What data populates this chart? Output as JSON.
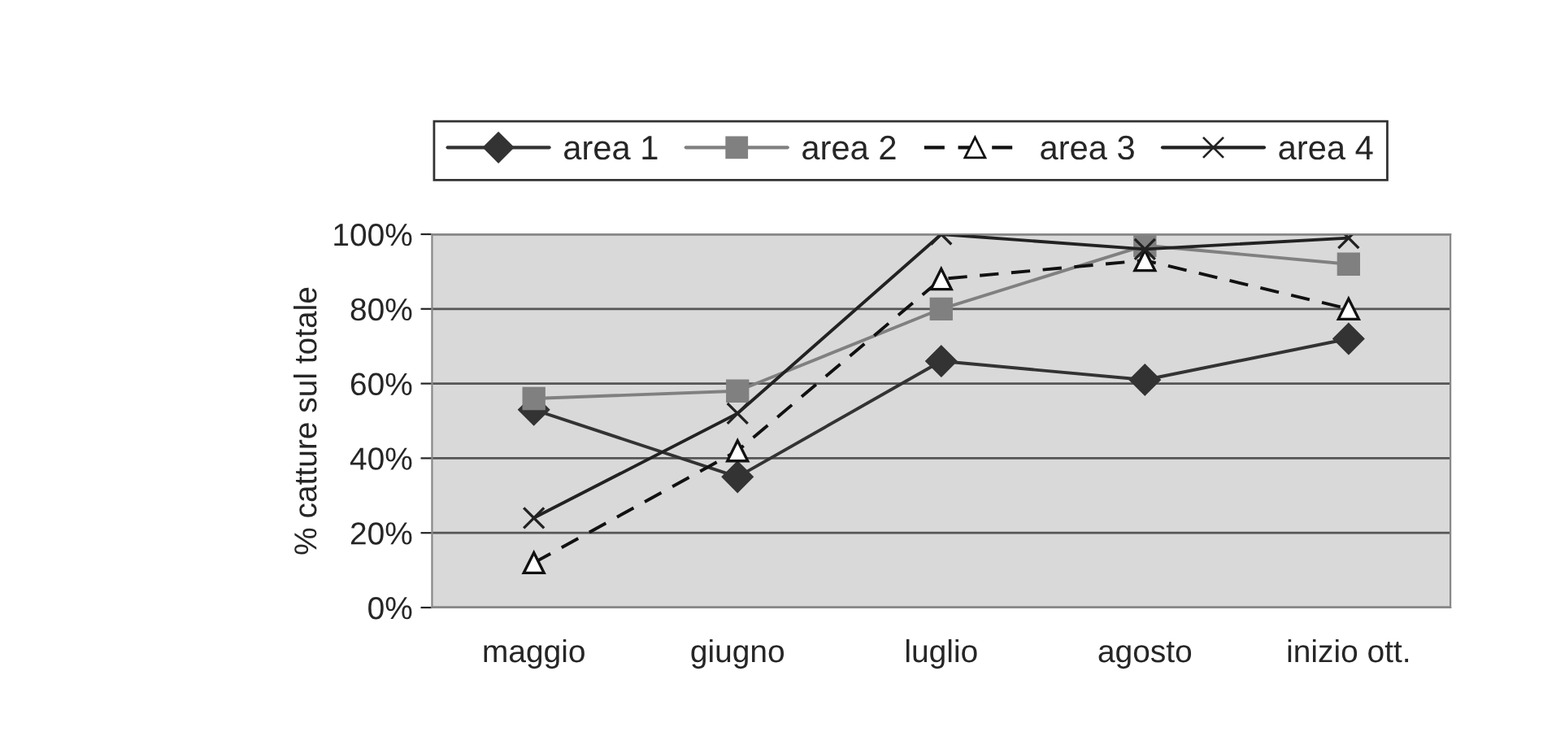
{
  "chart_data": {
    "type": "line",
    "ylabel": "% catture sul totale",
    "categories": [
      "maggio",
      "giugno",
      "luglio",
      "agosto",
      "inizio ott."
    ],
    "series": [
      {
        "name": "area 1",
        "color": "#333333",
        "marker": "diamond",
        "line_style": "solid",
        "values": [
          53,
          35,
          66,
          61,
          72
        ]
      },
      {
        "name": "area 2",
        "color": "#808080",
        "marker": "square",
        "line_style": "solid",
        "values": [
          56,
          58,
          80,
          97,
          92
        ]
      },
      {
        "name": "area 3",
        "color": "#111111",
        "marker": "triangle",
        "line_style": "dashed",
        "values": [
          12,
          42,
          88,
          93,
          80
        ]
      },
      {
        "name": "area 4",
        "color": "#222222",
        "marker": "cross",
        "line_style": "solid",
        "values": [
          24,
          52,
          100,
          96,
          99
        ]
      }
    ],
    "ylim": [
      0,
      100
    ],
    "yticks": [
      {
        "value": 0,
        "label": "0%"
      },
      {
        "value": 20,
        "label": "20%"
      },
      {
        "value": 40,
        "label": "40%"
      },
      {
        "value": 60,
        "label": "60%"
      },
      {
        "value": 80,
        "label": "80%"
      },
      {
        "value": 100,
        "label": "100%"
      }
    ],
    "grid": "y",
    "legend": "top"
  }
}
